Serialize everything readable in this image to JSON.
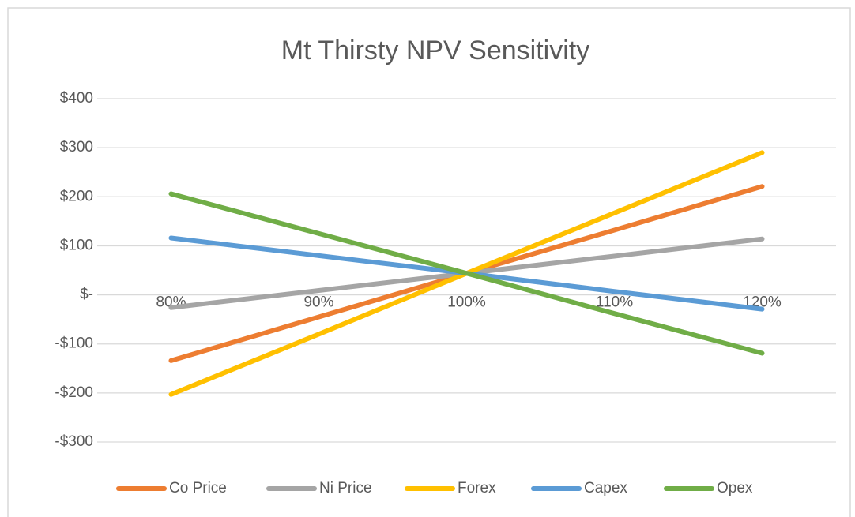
{
  "chart_data": {
    "type": "line",
    "title": "Mt Thirsty NPV Sensitivity",
    "categories": [
      "80%",
      "90%",
      "100%",
      "110%",
      "120%"
    ],
    "series": [
      {
        "name": "Co Price",
        "color": "#ed7d31",
        "values": [
          -134,
          -45,
          44,
          132,
          221
        ]
      },
      {
        "name": "Ni Price",
        "color": "#a5a5a5",
        "values": [
          -26,
          9,
          44,
          79,
          114
        ]
      },
      {
        "name": "Forex",
        "color": "#ffc000",
        "values": [
          -203,
          -80,
          44,
          167,
          290
        ]
      },
      {
        "name": "Capex",
        "color": "#5b9bd5",
        "values": [
          116,
          80,
          44,
          7,
          -29
        ]
      },
      {
        "name": "Opex",
        "color": "#70ad47",
        "values": [
          206,
          125,
          44,
          -38,
          -119
        ]
      }
    ],
    "ylim": [
      -300,
      400
    ],
    "yticks": [
      {
        "value": -300,
        "label": "-$300"
      },
      {
        "value": -200,
        "label": "-$200"
      },
      {
        "value": -100,
        "label": "-$100"
      },
      {
        "value": 0,
        "label": "$-"
      },
      {
        "value": 100,
        "label": "$100"
      },
      {
        "value": 200,
        "label": "$200"
      },
      {
        "value": 300,
        "label": "$300"
      },
      {
        "value": 400,
        "label": "$400"
      }
    ],
    "grid": true,
    "legend": "bottom"
  }
}
